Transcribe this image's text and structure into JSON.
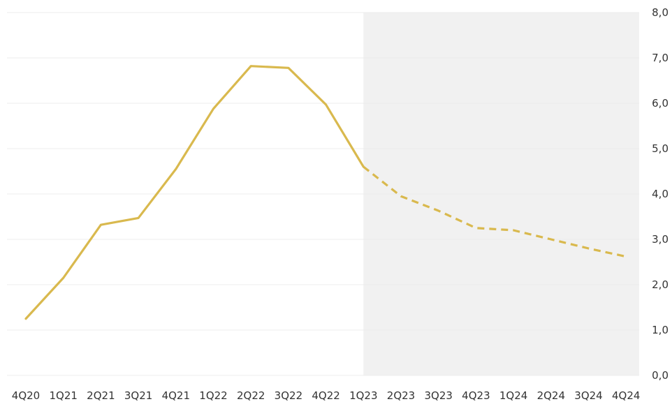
{
  "chart_data": {
    "type": "line",
    "categories": [
      "4Q20",
      "1Q21",
      "2Q21",
      "3Q21",
      "4Q21",
      "1Q22",
      "2Q22",
      "3Q22",
      "4Q22",
      "1Q23",
      "2Q23",
      "3Q23",
      "4Q23",
      "1Q24",
      "2Q24",
      "3Q24",
      "4Q24"
    ],
    "series": [
      {
        "values": [
          1.25,
          2.15,
          3.32,
          3.47,
          4.55,
          5.88,
          6.82,
          6.78,
          5.97,
          4.6,
          3.95,
          3.63,
          3.25,
          3.2,
          3.0,
          2.8,
          2.62
        ],
        "style_actual": "solid",
        "style_forecast": "dashed",
        "color": "#d9b94e"
      }
    ],
    "forecast_start_category": "1Q23",
    "forecast_shading_color": "#f1f1f1",
    "title": "",
    "xlabel": "",
    "ylabel": "",
    "ylim": [
      0,
      8
    ],
    "yticks": [
      "0,0",
      "1,0",
      "2,0",
      "3,0",
      "4,0",
      "5,0",
      "6,0",
      "7,0",
      "8,0"
    ],
    "y_axis_position": "right",
    "grid": true,
    "legend": "none"
  }
}
